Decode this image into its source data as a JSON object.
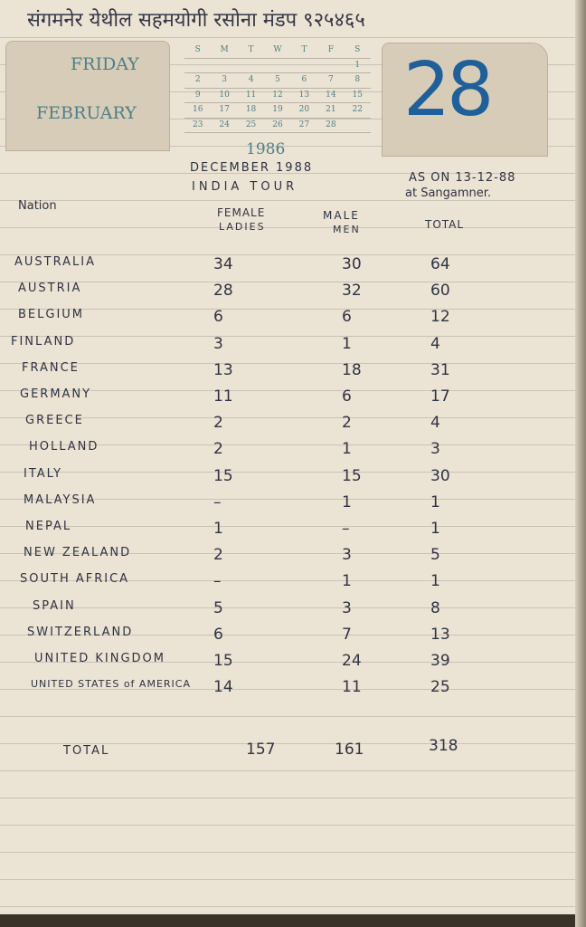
{
  "header_note": "संगमनेर येथील सहमयोगी रसोना मंडप ९२५४६५",
  "printed_calendar": {
    "weekday": "FRIDAY",
    "month": "FEBRUARY",
    "year": "1986",
    "date": "28",
    "day_headers": [
      "S",
      "M",
      "T",
      "W",
      "T",
      "F",
      "S"
    ],
    "weeks": [
      [
        "",
        "",
        "",
        "",
        "",
        "",
        "1"
      ],
      [
        "2",
        "3",
        "4",
        "5",
        "6",
        "7",
        "8"
      ],
      [
        "9",
        "10",
        "11",
        "12",
        "13",
        "14",
        "15"
      ],
      [
        "16",
        "17",
        "18",
        "19",
        "20",
        "21",
        "22"
      ],
      [
        "23",
        "24",
        "25",
        "26",
        "27",
        "28",
        ""
      ]
    ]
  },
  "notes": {
    "title_line1": "DECEMBER 1988",
    "title_line2": "INDIA TOUR",
    "as_on_line1": "AS ON 13-12-88",
    "as_on_line2": "at Sangamner."
  },
  "table": {
    "headers": {
      "nation": "Nation",
      "female_line1": "FEMALE",
      "female_line2": "LADIES",
      "male_line1": "MALE",
      "male_line2": "MEN",
      "total": "TOTAL"
    },
    "rows": [
      {
        "nation": "AUSTRALIA",
        "female": "34",
        "male": "30",
        "total": "64"
      },
      {
        "nation": "AUSTRIA",
        "female": "28",
        "male": "32",
        "total": "60"
      },
      {
        "nation": "BELGIUM",
        "female": "6",
        "male": "6",
        "total": "12"
      },
      {
        "nation": "FINLAND",
        "female": "3",
        "male": "1",
        "total": "4"
      },
      {
        "nation": "FRANCE",
        "female": "13",
        "male": "18",
        "total": "31"
      },
      {
        "nation": "GERMANY",
        "female": "11",
        "male": "6",
        "total": "17"
      },
      {
        "nation": "GREECE",
        "female": "2",
        "male": "2",
        "total": "4"
      },
      {
        "nation": "HOLLAND",
        "female": "2",
        "male": "1",
        "total": "3"
      },
      {
        "nation": "ITALY",
        "female": "15",
        "male": "15",
        "total": "30"
      },
      {
        "nation": "MALAYSIA",
        "female": "–",
        "male": "1",
        "total": "1"
      },
      {
        "nation": "NEPAL",
        "female": "1",
        "male": "–",
        "total": "1"
      },
      {
        "nation": "NEW ZEALAND",
        "female": "2",
        "male": "3",
        "total": "5"
      },
      {
        "nation": "SOUTH AFRICA",
        "female": "–",
        "male": "1",
        "total": "1"
      },
      {
        "nation": "SPAIN",
        "female": "5",
        "male": "3",
        "total": "8"
      },
      {
        "nation": "SWITZERLAND",
        "female": "6",
        "male": "7",
        "total": "13"
      },
      {
        "nation": "UNITED KINGDOM",
        "female": "15",
        "male": "24",
        "total": "39"
      },
      {
        "nation": "UNITED STATES of AMERICA",
        "female": "14",
        "male": "11",
        "total": "25"
      }
    ],
    "total_row": {
      "label": "TOTAL",
      "female": "157",
      "male": "161",
      "total": "318"
    }
  }
}
